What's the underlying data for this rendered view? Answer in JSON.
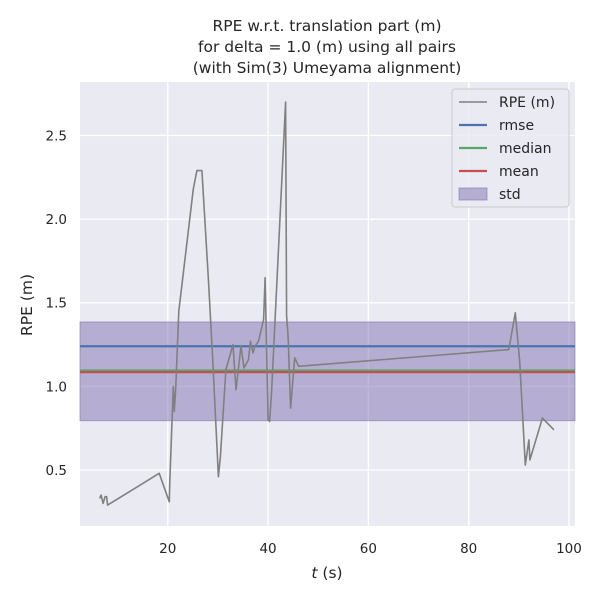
{
  "chart_data": {
    "type": "line",
    "title_lines": [
      "RPE w.r.t. translation part (m)",
      "for delta = 1.0 (m) using all pairs",
      "(with Sim(3) Umeyama alignment)"
    ],
    "xlabel_italic": "t",
    "xlabel_rest": " (s)",
    "ylabel": "RPE (m)",
    "xlim": [
      2.5,
      101.2
    ],
    "ylim": [
      0.165,
      2.82
    ],
    "xticks": [
      20,
      40,
      60,
      80,
      100
    ],
    "yticks": [
      0.5,
      1.0,
      1.5,
      2.0,
      2.5
    ],
    "xtick_labels": [
      "20",
      "40",
      "60",
      "80",
      "100"
    ],
    "ytick_labels": [
      "0.5",
      "1.0",
      "1.5",
      "2.0",
      "2.5"
    ],
    "grid": true,
    "legend_position": "top-right",
    "background_color": "#eaeaf2",
    "series": [
      {
        "name": "RPE (m)",
        "color": "#808080",
        "x": [
          6.4,
          6.7,
          7.1,
          7.5,
          7.8,
          8.0,
          18.3,
          20.3,
          20.4,
          21.1,
          21.3,
          21.6,
          22.2,
          25.1,
          25.8,
          26.8,
          28.1,
          29.0,
          30.1,
          30.5,
          31.6,
          33.0,
          33.6,
          34.6,
          35.2,
          36.1,
          36.5,
          37.0,
          37.4,
          38.1,
          39.1,
          39.4,
          39.6,
          40.0,
          40.3,
          40.7,
          43.5,
          43.7,
          44.0,
          44.5,
          45.3,
          46.1,
          88.0,
          89.3,
          90.2,
          91.3,
          92.0,
          92.2,
          94.7,
          97.0
        ],
        "y": [
          0.33,
          0.35,
          0.3,
          0.34,
          0.34,
          0.29,
          0.48,
          0.31,
          0.43,
          1.0,
          0.85,
          1.0,
          1.45,
          2.18,
          2.29,
          2.29,
          1.64,
          1.14,
          0.46,
          0.58,
          1.1,
          1.25,
          0.98,
          1.24,
          1.11,
          1.16,
          1.27,
          1.2,
          1.24,
          1.27,
          1.4,
          1.65,
          1.36,
          0.8,
          0.79,
          0.97,
          2.7,
          1.42,
          1.3,
          0.87,
          1.17,
          1.12,
          1.22,
          1.44,
          1.14,
          0.53,
          0.68,
          0.56,
          0.81,
          0.74
        ]
      }
    ],
    "stats": {
      "rmse": {
        "name": "rmse",
        "value": 1.24,
        "color": "#4c72b0"
      },
      "median": {
        "name": "median",
        "value": 1.095,
        "color": "#55a868"
      },
      "mean": {
        "name": "mean",
        "value": 1.085,
        "color": "#c44e52"
      },
      "std": {
        "name": "std",
        "low": 0.795,
        "high": 1.385,
        "color": "#8172b2"
      }
    },
    "legend": [
      "RPE (m)",
      "rmse",
      "median",
      "mean",
      "std"
    ]
  }
}
